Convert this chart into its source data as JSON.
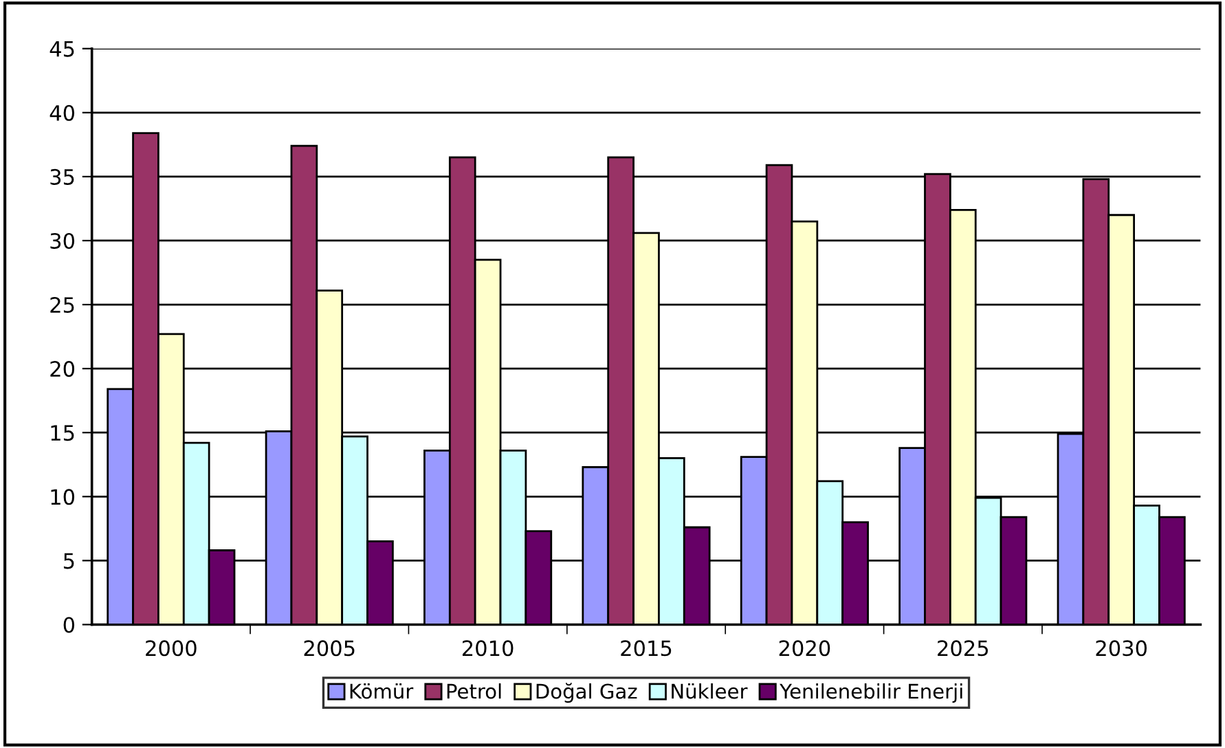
{
  "chart_data": {
    "type": "bar",
    "categories": [
      "2000",
      "2005",
      "2010",
      "2015",
      "2020",
      "2025",
      "2030"
    ],
    "series": [
      {
        "name": "Kömür",
        "color": "#9999ff",
        "values": [
          18.4,
          15.1,
          13.6,
          12.3,
          13.1,
          13.8,
          14.9
        ]
      },
      {
        "name": "Petrol",
        "color": "#993366",
        "values": [
          38.4,
          37.4,
          36.5,
          36.5,
          35.9,
          35.2,
          34.8
        ]
      },
      {
        "name": "Doğal Gaz",
        "color": "#ffffcc",
        "values": [
          22.7,
          26.1,
          28.5,
          30.6,
          31.5,
          32.4,
          32.0
        ]
      },
      {
        "name": "Nükleer",
        "color": "#ccffff",
        "values": [
          14.2,
          14.7,
          13.6,
          13.0,
          11.2,
          9.9,
          9.3
        ]
      },
      {
        "name": "Yenilenebilir Enerji",
        "color": "#660066",
        "values": [
          5.8,
          6.5,
          7.3,
          7.6,
          8.0,
          8.4,
          8.4
        ]
      }
    ],
    "ylim": [
      0,
      45
    ],
    "yticks": [
      0,
      5,
      10,
      15,
      20,
      25,
      30,
      35,
      40,
      45
    ],
    "grid": "y",
    "legend": "bottom"
  }
}
